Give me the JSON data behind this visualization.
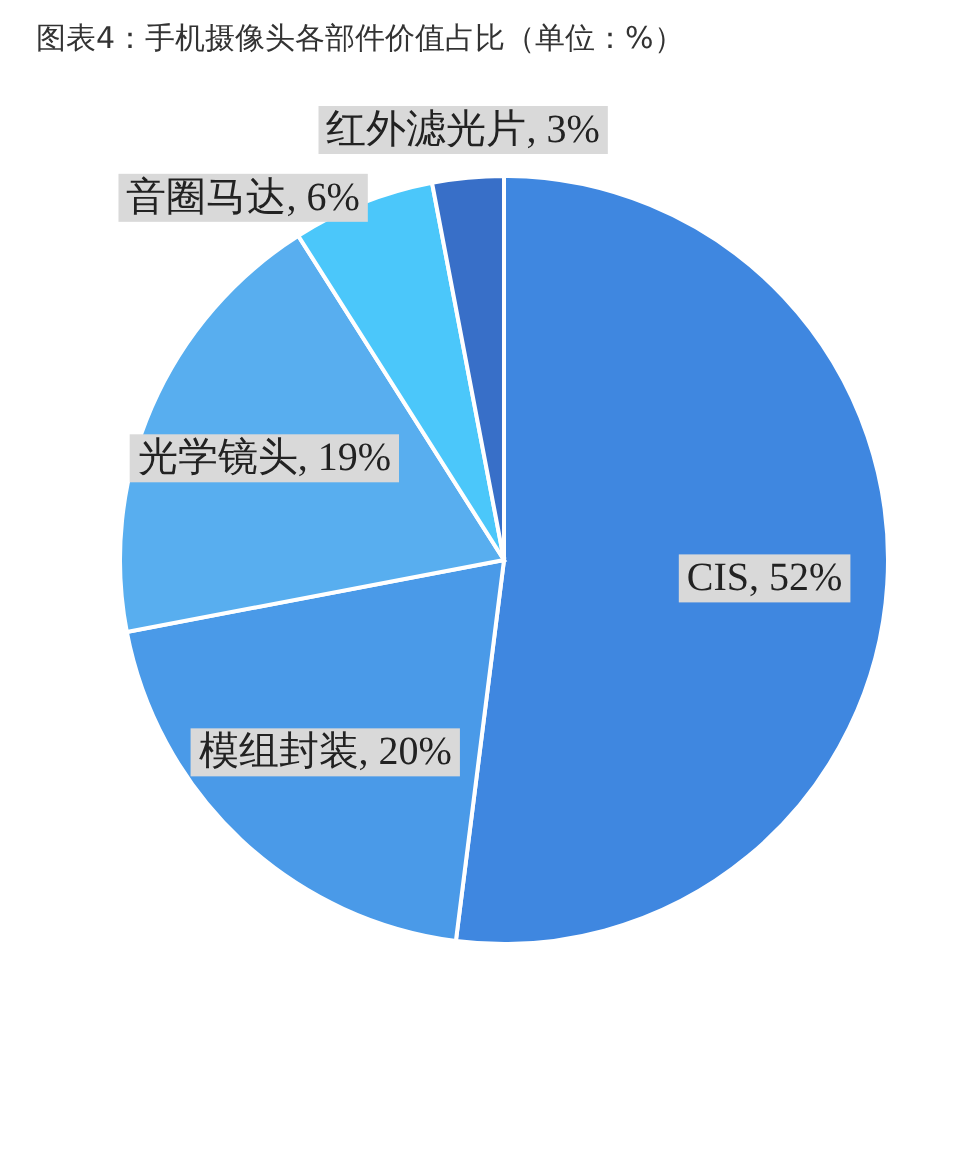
{
  "chart_data": {
    "type": "pie",
    "title": "图表4：手机摄像头各部件价值占比（单位：%）",
    "categories": [
      "CIS",
      "模组封装",
      "光学镜头",
      "音圈马达",
      "红外滤光片"
    ],
    "values": [
      52,
      20,
      19,
      6,
      3
    ],
    "colors": [
      "#3f87e0",
      "#4a9ae8",
      "#58aeef",
      "#4bc7fa",
      "#386fc8"
    ],
    "value_labels": [
      ", 52%",
      ", 20%",
      ", 19%",
      ", 6%",
      ", 3%"
    ]
  }
}
